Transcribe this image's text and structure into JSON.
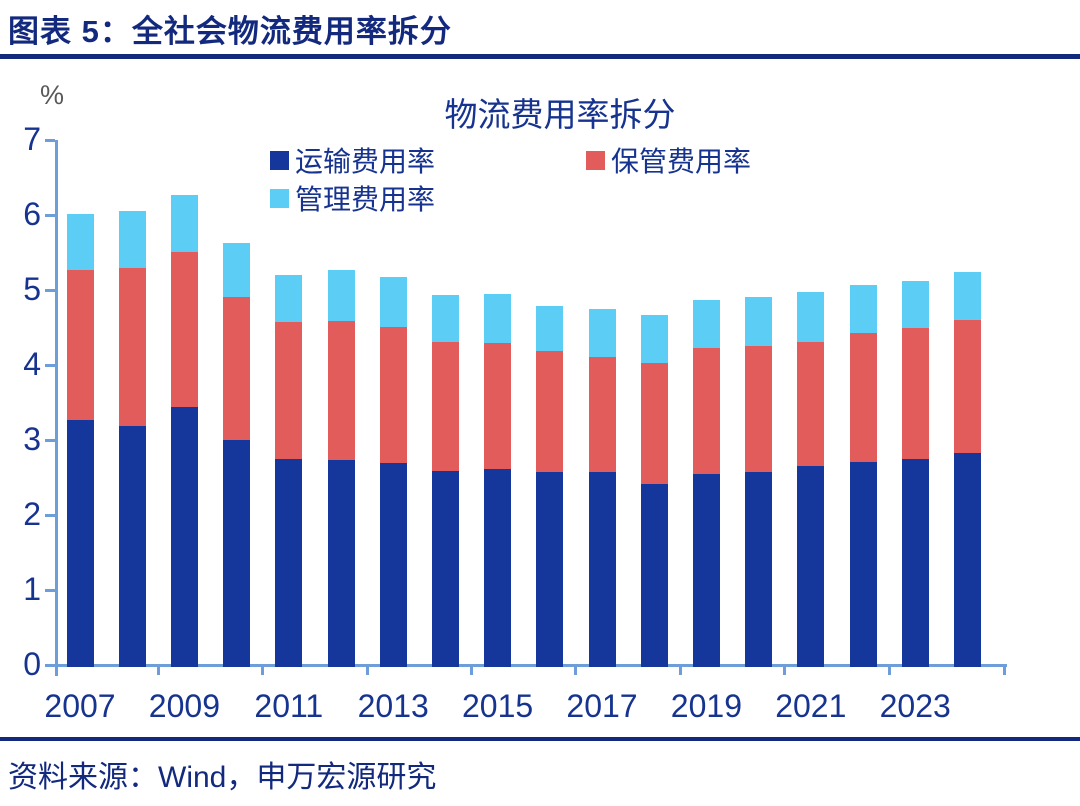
{
  "header": {
    "title": "图表 5：全社会物流费用率拆分"
  },
  "footer": {
    "source": "资料来源：Wind，申万宏源研究"
  },
  "chart_data": {
    "type": "bar",
    "stacked": true,
    "title": "物流费用率拆分",
    "unit_label": "%",
    "xlabel": "",
    "ylabel": "%",
    "ylim": [
      0,
      7
    ],
    "y_ticks": [
      0,
      1,
      2,
      3,
      4,
      5,
      6,
      7
    ],
    "grid": false,
    "legend_position": "top",
    "categories": [
      "2007",
      "2008",
      "2009",
      "2010",
      "2011",
      "2012",
      "2013",
      "2014",
      "2015",
      "2016",
      "2017",
      "2018",
      "2019",
      "2020",
      "2021",
      "2022",
      "2023",
      "2024"
    ],
    "x_tick_labels": [
      "2007",
      "2009",
      "2011",
      "2013",
      "2015",
      "2017",
      "2019",
      "2021",
      "2023"
    ],
    "series": [
      {
        "name": "运输费用率",
        "color": "#15379C",
        "values": [
          3.3,
          3.22,
          3.47,
          3.03,
          2.78,
          2.76,
          2.72,
          2.62,
          2.64,
          2.6,
          2.6,
          2.44,
          2.58,
          2.6,
          2.68,
          2.74,
          2.78,
          2.85
        ]
      },
      {
        "name": "保管费用率",
        "color": "#E25C5C",
        "values": [
          1.99,
          2.1,
          2.07,
          1.9,
          1.82,
          1.86,
          1.82,
          1.72,
          1.68,
          1.61,
          1.54,
          1.62,
          1.67,
          1.68,
          1.66,
          1.71,
          1.74,
          1.78
        ]
      },
      {
        "name": "管理费用率",
        "color": "#5CCDF5",
        "values": [
          0.75,
          0.76,
          0.75,
          0.73,
          0.63,
          0.67,
          0.66,
          0.62,
          0.65,
          0.61,
          0.64,
          0.64,
          0.65,
          0.66,
          0.66,
          0.65,
          0.63,
          0.64
        ]
      }
    ]
  },
  "colors": {
    "header_navy": "#12297E",
    "chart_text_navy": "#16338F",
    "axis_line_blue": "#6D9ED9",
    "percent_gray": "#595959"
  }
}
